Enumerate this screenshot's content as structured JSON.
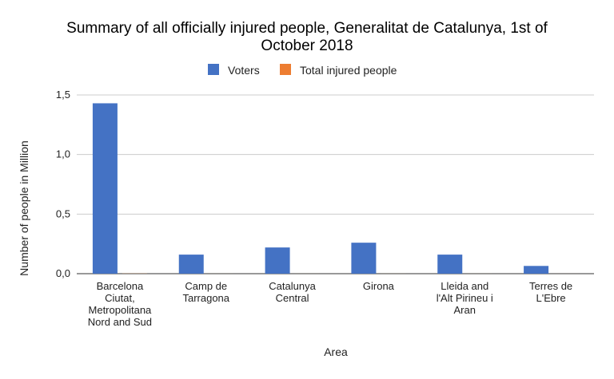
{
  "chart_data": {
    "type": "bar",
    "title_lines": [
      "Summary of all officially injured people, Generalitat de Catalunya, 1st of",
      "October 2018"
    ],
    "xlabel": "Area",
    "ylabel": "Number of people in Million",
    "ylim": [
      0,
      1.5
    ],
    "yticks": [
      "0,0",
      "0,5",
      "1,0",
      "1,5"
    ],
    "ytick_values": [
      0,
      0.5,
      1.0,
      1.5
    ],
    "grid": true,
    "legend_position": "top",
    "categories": [
      [
        "Barcelona",
        "Ciutat,",
        "Metropolitana",
        "Nord and Sud"
      ],
      [
        "Camp de",
        "Tarragona"
      ],
      [
        "Catalunya",
        "Central"
      ],
      [
        "Girona"
      ],
      [
        "Lleida and",
        "l'Alt Pirineu i",
        "Aran"
      ],
      [
        "Terres de",
        "L'Ebre"
      ]
    ],
    "series": [
      {
        "name": "Voters",
        "color": "#4472C4",
        "values": [
          1.43,
          0.16,
          0.22,
          0.26,
          0.16,
          0.065
        ]
      },
      {
        "name": "Total injured people",
        "color": "#ED7D31",
        "values": [
          0.001,
          0.0001,
          0.0001,
          0.0002,
          0.0001,
          5e-05
        ]
      }
    ]
  }
}
